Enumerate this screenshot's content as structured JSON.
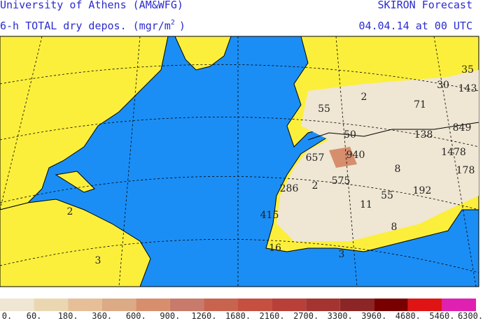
{
  "header": {
    "left": [
      "University of Athens (AM&WFG)",
      "6-h TOTAL dry depos. (mgr/m"
    ],
    "unit_power": "2",
    "unit_close": ")",
    "right": [
      "SKIRON Forecast",
      "04.04.14 at 00 UTC"
    ]
  },
  "map": {
    "labels": [
      "35",
      "143",
      "30",
      "2",
      "71",
      "55",
      "50",
      "849",
      "138",
      "1478",
      "940",
      "657",
      "178",
      "8",
      "286",
      "2",
      "575",
      "192",
      "55",
      "11",
      "415",
      "8",
      "16",
      "3",
      "3",
      "2"
    ]
  },
  "legend": {
    "colors": [
      "#efe6d3",
      "#ead7b2",
      "#e6bf98",
      "#dcaa85",
      "#d68e6c",
      "#c87a6b",
      "#c8644e",
      "#c65040",
      "#b84038",
      "#a43430",
      "#8c2626",
      "#780000",
      "#e01414",
      "#e020b0"
    ],
    "labels": [
      "0.",
      "60.",
      "180.",
      "360.",
      "600.",
      "900.",
      "1260.",
      "1680.",
      "2160.",
      "2700.",
      "3300.",
      "3960.",
      "4680.",
      "5460.",
      "6300."
    ]
  }
}
